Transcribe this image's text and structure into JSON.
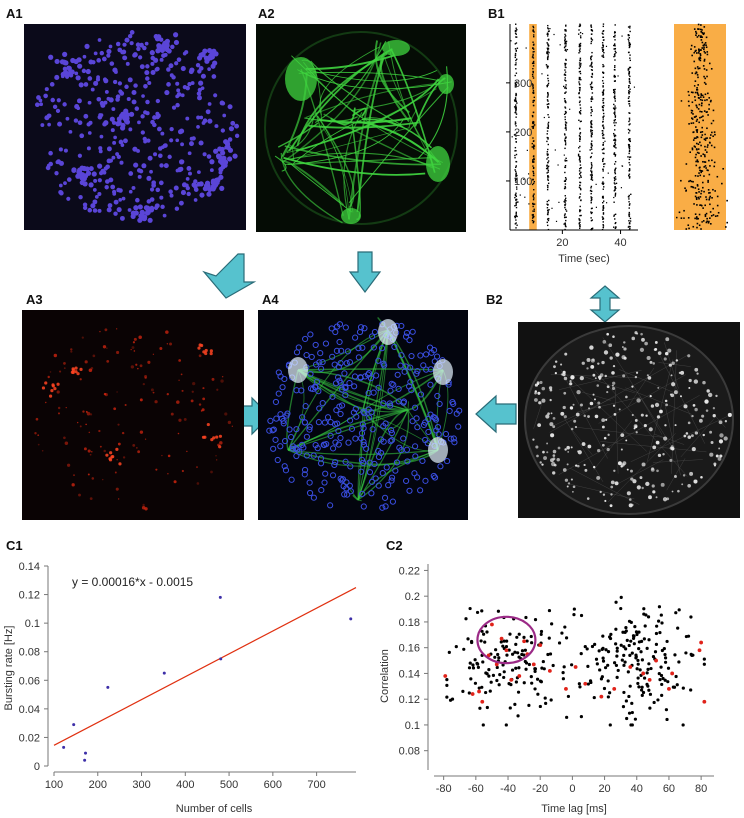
{
  "labels": {
    "a1": "A1",
    "a2": "A2",
    "a3": "A3",
    "a4": "A4",
    "b1": "B1",
    "b2": "B2",
    "c1": "C1",
    "c2": "C2"
  },
  "colors": {
    "a1_bg": "#0b0a1a",
    "a1_dot": "#5a45d8",
    "a2_bg": "#050c05",
    "a2_fiber": "#3fd43f",
    "a3_bg": "#0a0304",
    "a3_dot": "#e02810",
    "a4_bg": "#03050e",
    "a4_ring": "#3a4ee0",
    "b2_bg": "#111111",
    "b2_dot": "#e8e8e8",
    "highlight": "#f9ad46",
    "arrow": "#56c2ce",
    "fit_line": "#e03010",
    "c1_points": "#3d2fa8",
    "c2_black": "#000000",
    "c2_red": "#e0231a",
    "ellipse": "#9b2a86"
  },
  "icons": {
    "arrow_a1_a3": "arrow-down-left-icon",
    "arrow_a2_a4": "arrow-down-icon",
    "arrow_b1_b2": "arrow-up-down-icon",
    "arrow_a3_a4": "arrow-right-icon",
    "arrow_b2_a4": "arrow-left-icon"
  },
  "raster": {
    "xlabel": "Time (sec)",
    "xticks": [
      20,
      40
    ],
    "yticks": [
      100,
      200,
      300
    ],
    "xlim": [
      2,
      46
    ],
    "ylim": [
      0,
      420
    ]
  },
  "chart_data": [
    {
      "type": "scatter",
      "id": "c1",
      "xlabel": "Number of cells",
      "ylabel": "Bursting rate [Hz]",
      "xlim": [
        100,
        790
      ],
      "ylim": [
        0,
        0.14
      ],
      "xticks": [
        100,
        200,
        300,
        400,
        500,
        600,
        700
      ],
      "yticks": [
        0,
        0.02,
        0.04,
        0.06,
        0.08,
        0.1,
        0.12,
        0.14
      ],
      "annotation": "y = 0.00016*x - 0.0015",
      "points": [
        [
          122,
          0.013
        ],
        [
          145,
          0.029
        ],
        [
          170,
          0.004
        ],
        [
          172,
          0.009
        ],
        [
          223,
          0.055
        ],
        [
          352,
          0.065
        ],
        [
          480,
          0.118
        ],
        [
          481,
          0.075
        ],
        [
          778,
          0.103
        ]
      ],
      "fit": {
        "slope": 0.00016,
        "intercept": -0.0015
      }
    },
    {
      "type": "scatter",
      "id": "c2",
      "xlabel": "Time lag [ms]",
      "ylabel": "Correlation",
      "xlim": [
        -86,
        88
      ],
      "ylim": [
        0.065,
        0.225
      ],
      "xticks": [
        -80,
        -60,
        -40,
        -20,
        0,
        20,
        40,
        60,
        80
      ],
      "yticks": [
        0.08,
        0.1,
        0.12,
        0.14,
        0.16,
        0.18,
        0.2,
        0.22
      ],
      "red_points": [
        [
          -79,
          0.138
        ],
        [
          -62,
          0.124
        ],
        [
          -58,
          0.126
        ],
        [
          -56,
          0.118
        ],
        [
          -52,
          0.154
        ],
        [
          -50,
          0.178
        ],
        [
          -47,
          0.147
        ],
        [
          -44,
          0.167
        ],
        [
          -41,
          0.158
        ],
        [
          -38,
          0.135
        ],
        [
          -33,
          0.138
        ],
        [
          -30,
          0.165
        ],
        [
          -28,
          0.155
        ],
        [
          -24,
          0.147
        ],
        [
          -20,
          0.162
        ],
        [
          -14,
          0.142
        ],
        [
          -4,
          0.128
        ],
        [
          2,
          0.145
        ],
        [
          8,
          0.132
        ],
        [
          18,
          0.122
        ],
        [
          26,
          0.128
        ],
        [
          36,
          0.145
        ],
        [
          44,
          0.14
        ],
        [
          48,
          0.135
        ],
        [
          52,
          0.15
        ],
        [
          60,
          0.128
        ],
        [
          62,
          0.14
        ],
        [
          79,
          0.158
        ],
        [
          80,
          0.164
        ],
        [
          82,
          0.118
        ]
      ],
      "highlight_region": {
        "cx": -41,
        "cy": 0.166,
        "rx": 18,
        "ry": 0.018
      }
    }
  ]
}
